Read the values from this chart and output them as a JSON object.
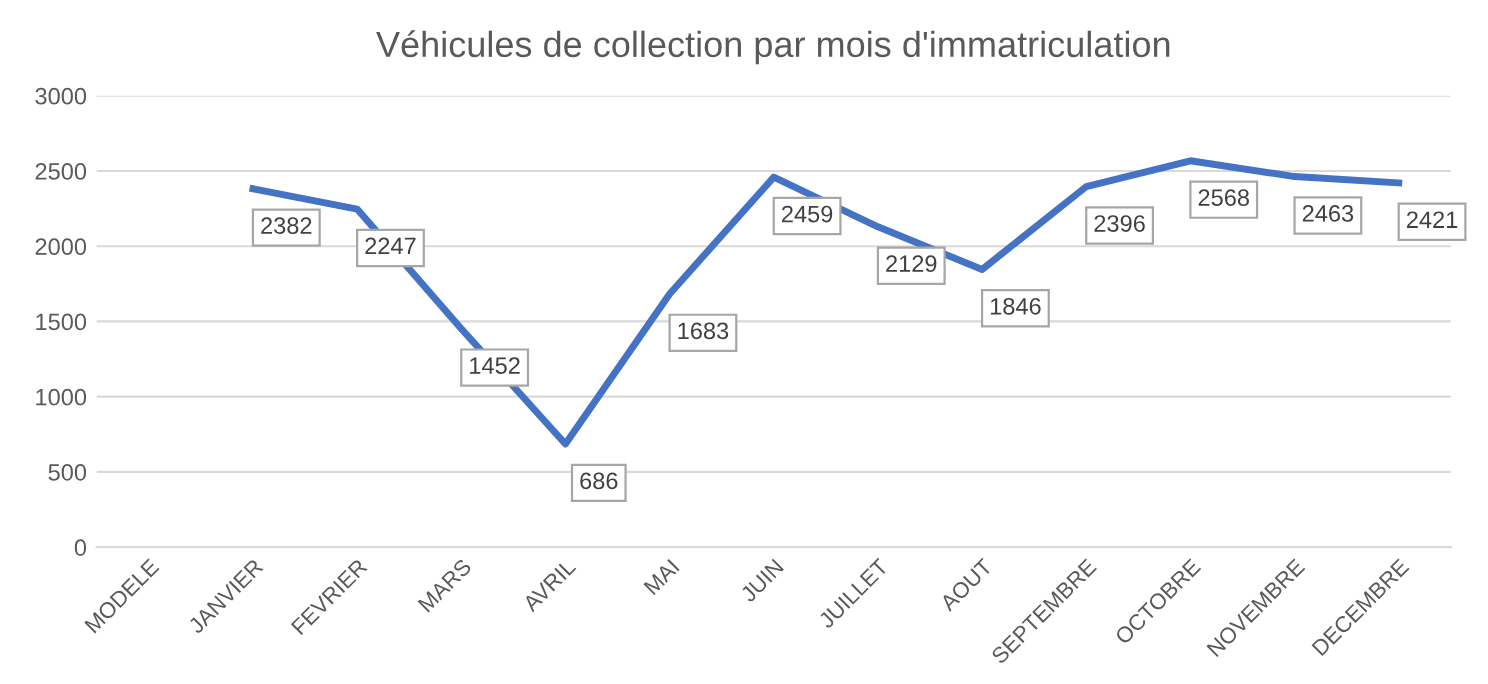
{
  "chart_data": {
    "type": "line",
    "title": "Véhicules de collection par mois d'immatriculation",
    "categories": [
      "MODELE",
      "JANVIER",
      "FEVRIER",
      "MARS",
      "AVRIL",
      "MAI",
      "JUIN",
      "JUILLET",
      "AOUT",
      "SEPTEMBRE",
      "OCTOBRE",
      "NOVEMBRE",
      "DECEMBRE"
    ],
    "series": [
      {
        "color": "#4472c4",
        "values": [
          null,
          2382,
          2247,
          1452,
          686,
          1683,
          2459,
          2129,
          1846,
          2396,
          2568,
          2463,
          2421
        ]
      }
    ],
    "ylim": [
      0,
      3000
    ],
    "yticks": [
      0,
      500,
      1000,
      1500,
      2000,
      2500,
      3000
    ],
    "grid": "y",
    "data_labels": true,
    "legend": false,
    "marker": "none",
    "line_style": "solid"
  }
}
